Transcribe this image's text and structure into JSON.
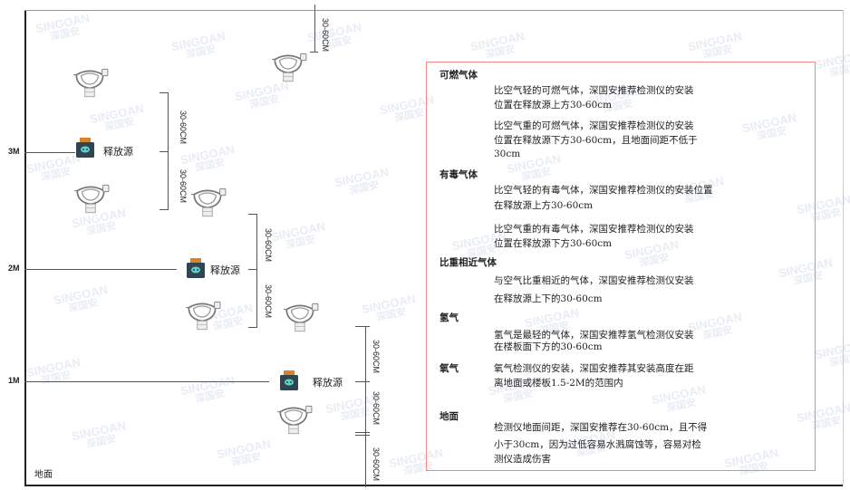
{
  "watermark": {
    "brand": "SINGOAN",
    "cn": "深国安"
  },
  "levels": [
    {
      "label": "3M"
    },
    {
      "label": "2M"
    },
    {
      "label": "1M"
    }
  ],
  "ground_label": "地面",
  "source_label": "释放源",
  "dimension_label": "30-60CM",
  "info": {
    "sections": [
      {
        "title": "可燃气体",
        "paragraphs": [
          [
            "比空气轻的可燃气体，深国安推荐检测仪的安装",
            "位置在释放源上方30-60cm"
          ],
          [
            "比空气重的可燃气体，深国安推荐检测仪的安装",
            "位置在释放源下方30-60cm，且地面间距不低于",
            "30cm"
          ]
        ]
      },
      {
        "title": "有毒气体",
        "paragraphs": [
          [
            "比空气轻的有毒气体，深国安推荐检测仪的安装位置",
            "在释放源上方30-60cm"
          ],
          [
            "比空气重的有毒气体，深国安推荐检测仪的安装",
            "位置在释放源下方30-60cm"
          ]
        ]
      },
      {
        "title": "比重相近气体",
        "paragraphs": [
          [
            "与空气比重相近的气体，深国安推荐检测仪安装",
            "在释放源上下的30-60cm"
          ]
        ]
      },
      {
        "title": "氢气",
        "paragraphs": [
          [
            "氢气是最轻的气体，深国安推荐氢气检测仪安装",
            "在楼板面下方的30-60cm"
          ]
        ]
      },
      {
        "title": "氧气",
        "paragraphs": [
          [
            "氧气检测仪的安装，深国安推荐其安装高度在距",
            "离地面或楼板1.5-2M的范围内"
          ]
        ]
      },
      {
        "title": "地面",
        "paragraphs": [
          [
            "检测仪地面间距，深国安推荐在30-60cm，且不得",
            "小于30cm，因为过低容易水溅腐蚀等，容易对检",
            "测仪造成伤害"
          ]
        ]
      }
    ]
  },
  "colors": {
    "frame": "#222222",
    "box_border": "#ee8888",
    "source_body": "#2f4652",
    "source_top": "#d9822b",
    "source_face": "#5fd3c8"
  }
}
